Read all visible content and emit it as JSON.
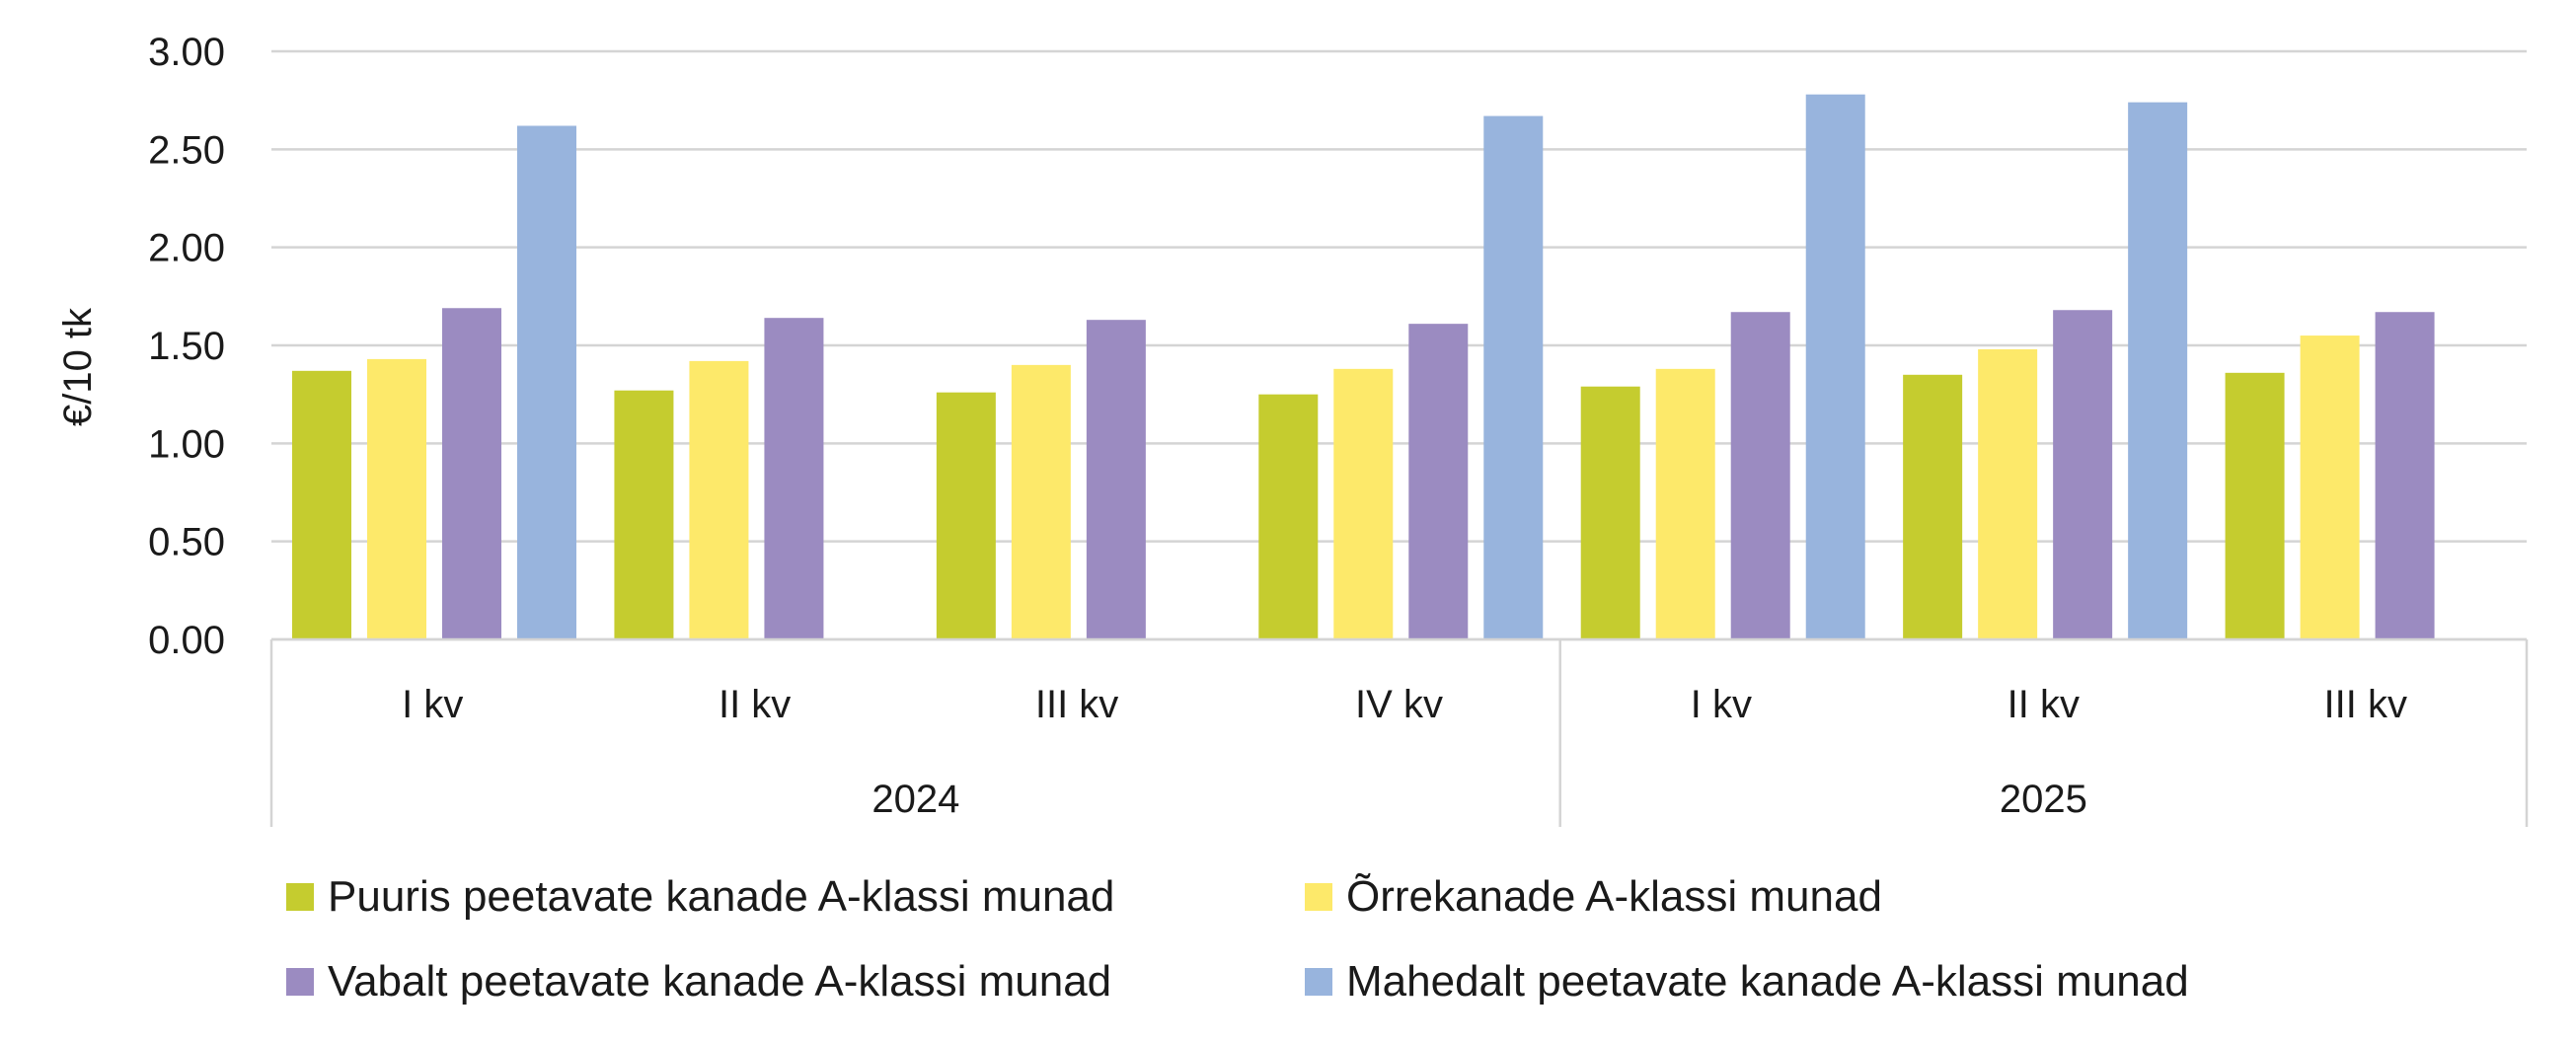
{
  "chart_data": {
    "type": "bar",
    "ylabel": "€/10 tk",
    "ylim": [
      0,
      3
    ],
    "yticks": [
      "0.00",
      "0.50",
      "1.00",
      "1.50",
      "2.00",
      "2.50",
      "3.00"
    ],
    "categories": [
      "I kv",
      "II kv",
      "III kv",
      "IV kv",
      "I kv",
      "II kv",
      "III kv"
    ],
    "groups": [
      {
        "label": "2024",
        "categories": [
          "I kv",
          "II kv",
          "III kv",
          "IV kv"
        ]
      },
      {
        "label": "2025",
        "categories": [
          "I kv",
          "II kv",
          "III kv"
        ]
      }
    ],
    "grid": true,
    "legend_position": "bottom",
    "series": [
      {
        "name": "Puuris peetavate kanade A-klassi munad",
        "color": "#c5cc2f",
        "values": [
          1.37,
          1.27,
          1.26,
          1.25,
          1.29,
          1.35,
          1.36
        ]
      },
      {
        "name": "Õrrekanade A-klassi munad",
        "color": "#fde96a",
        "values": [
          1.43,
          1.42,
          1.4,
          1.38,
          1.38,
          1.48,
          1.55
        ]
      },
      {
        "name": "Vabalt peetavate kanade A-klassi munad",
        "color": "#9b8bc1",
        "values": [
          1.69,
          1.64,
          1.63,
          1.61,
          1.67,
          1.68,
          1.67
        ]
      },
      {
        "name": "Mahedalt peetavate kanade A-klassi munad",
        "color": "#98b4dd",
        "values": [
          2.62,
          null,
          null,
          2.67,
          2.78,
          2.74,
          null
        ]
      }
    ],
    "legend_order": [
      0,
      1,
      2,
      3
    ]
  }
}
